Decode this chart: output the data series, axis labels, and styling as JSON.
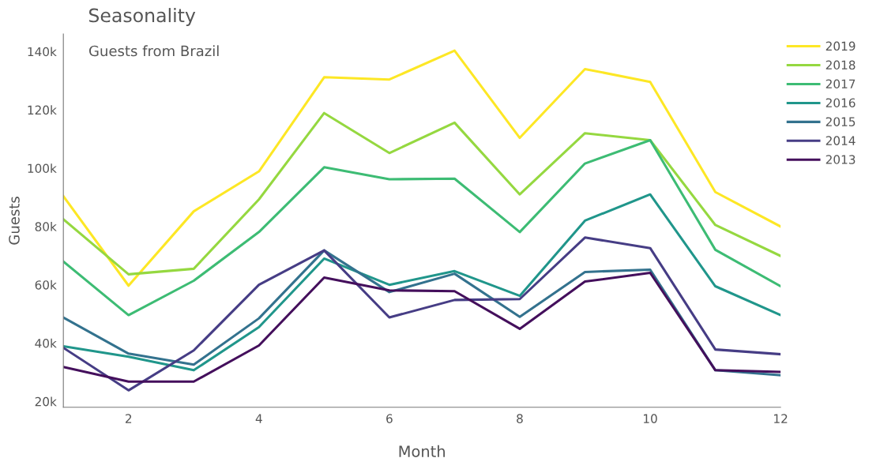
{
  "chart_data": {
    "type": "line",
    "title": "Seasonality",
    "subtitle": "Guests from Brazil",
    "xlabel": "Month",
    "ylabel": "Guests",
    "x": [
      1,
      2,
      3,
      4,
      5,
      6,
      7,
      8,
      9,
      10,
      11,
      12
    ],
    "xlim": [
      1,
      12
    ],
    "xticks": [
      2,
      4,
      6,
      8,
      10,
      12
    ],
    "ylim": [
      18000,
      146000
    ],
    "yticks": [
      {
        "value": 20000,
        "label": "20k"
      },
      {
        "value": 40000,
        "label": "40k"
      },
      {
        "value": 60000,
        "label": "60k"
      },
      {
        "value": 80000,
        "label": "80k"
      },
      {
        "value": 100000,
        "label": "100k"
      },
      {
        "value": 120000,
        "label": "120k"
      },
      {
        "value": 140000,
        "label": "140k"
      }
    ],
    "grid": false,
    "legend": "right",
    "marker": "none",
    "line_style": "solid",
    "series": [
      {
        "name": "2019",
        "color": "#fde725",
        "values": [
          90400,
          59700,
          85200,
          98900,
          131200,
          130400,
          140300,
          110400,
          134000,
          129600,
          91800,
          80000
        ]
      },
      {
        "name": "2018",
        "color": "#95d840",
        "values": [
          82500,
          63600,
          65500,
          89300,
          118900,
          105200,
          115600,
          91000,
          112000,
          109600,
          80500,
          69900
        ]
      },
      {
        "name": "2017",
        "color": "#3dbc74",
        "values": [
          68000,
          49600,
          61400,
          78100,
          100300,
          96200,
          96400,
          78100,
          101600,
          109600,
          72000,
          59500
        ]
      },
      {
        "name": "2016",
        "color": "#20968b",
        "values": [
          38900,
          35300,
          30700,
          45500,
          69000,
          60000,
          64700,
          56200,
          82000,
          91000,
          59500,
          49600
        ]
      },
      {
        "name": "2015",
        "color": "#33728e",
        "values": [
          48800,
          36400,
          32600,
          48500,
          71800,
          57500,
          63800,
          49000,
          64400,
          65200,
          30700,
          29000
        ]
      },
      {
        "name": "2014",
        "color": "#463d85",
        "values": [
          38400,
          23800,
          37500,
          60000,
          71800,
          48800,
          54800,
          55100,
          76200,
          72600,
          37800,
          36200
        ]
      },
      {
        "name": "2013",
        "color": "#440f5c",
        "values": [
          31800,
          26800,
          26800,
          39200,
          62500,
          58100,
          57800,
          44900,
          61100,
          64100,
          30700,
          30100
        ]
      }
    ]
  }
}
